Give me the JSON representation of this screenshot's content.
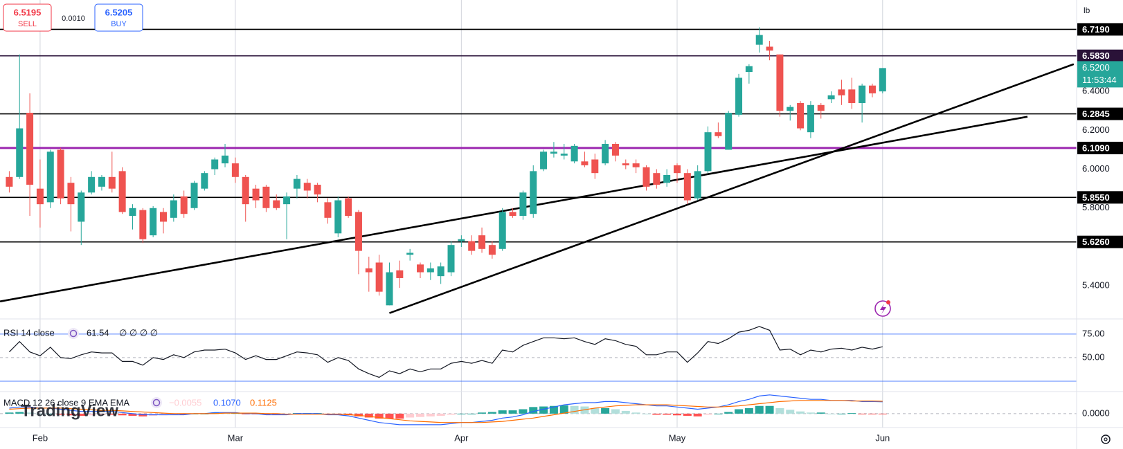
{
  "header": {
    "sell_price": "6.5195",
    "sell_label": "SELL",
    "spread": "0.0010",
    "buy_price": "6.5205",
    "buy_label": "BUY"
  },
  "chart_data": [
    {
      "type": "candlestick",
      "axis_unit": "lb",
      "categories": [
        null,
        null,
        null,
        "Feb",
        null,
        null,
        null,
        null,
        null,
        null,
        null,
        null,
        null,
        null,
        null,
        null,
        null,
        null,
        null,
        null,
        null,
        null,
        "Mar",
        null,
        null,
        null,
        null,
        null,
        null,
        null,
        null,
        null,
        null,
        null,
        null,
        null,
        null,
        null,
        null,
        null,
        null,
        null,
        null,
        null,
        "Apr",
        null,
        null,
        null,
        null,
        null,
        null,
        null,
        null,
        null,
        null,
        null,
        null,
        null,
        null,
        null,
        null,
        null,
        null,
        null,
        null,
        "May",
        null,
        null,
        null,
        null,
        null,
        null,
        null,
        null,
        null,
        null,
        null,
        null,
        null,
        null,
        null,
        null,
        null,
        null,
        null,
        "Jun"
      ],
      "open": [
        5.96,
        5.96,
        6.29,
        5.9,
        5.83,
        6.1,
        5.93,
        5.73,
        5.88,
        5.91,
        5.96,
        5.99,
        5.76,
        5.79,
        5.66,
        5.78,
        5.75,
        5.86,
        5.8,
        5.9,
        6.0,
        6.03,
        6.03,
        5.96,
        5.9,
        5.91,
        5.84,
        5.82,
        5.9,
        5.93,
        5.92,
        5.83,
        5.67,
        5.85,
        5.78,
        5.49,
        5.52,
        5.3,
        5.48,
        5.56,
        5.51,
        5.47,
        5.45,
        5.47,
        5.63,
        5.63,
        5.66,
        5.61,
        5.59,
        5.78,
        5.76,
        5.77,
        6.0,
        6.08,
        6.07,
        6.04,
        6.04,
        6.05,
        6.03,
        6.13,
        6.03,
        6.03,
        6.01,
        5.98,
        5.93,
        6.02,
        5.98,
        5.85,
        5.99,
        6.19,
        6.1,
        6.28,
        6.5,
        6.64,
        6.63,
        6.59,
        6.3,
        6.34,
        6.19,
        6.33,
        6.36,
        6.41,
        6.41,
        6.34,
        6.43,
        6.4
      ],
      "high": [
        5.99,
        6.59,
        6.39,
        6.05,
        6.1,
        6.11,
        5.96,
        5.89,
        5.99,
        5.97,
        6.09,
        6.01,
        5.82,
        5.8,
        5.81,
        5.8,
        5.87,
        5.89,
        5.94,
        5.99,
        6.06,
        6.13,
        6.06,
        5.97,
        5.92,
        5.92,
        5.87,
        5.88,
        5.97,
        5.95,
        5.93,
        5.85,
        5.86,
        5.86,
        5.79,
        5.55,
        5.56,
        5.52,
        5.53,
        5.59,
        5.52,
        5.52,
        5.52,
        5.63,
        5.66,
        5.66,
        5.7,
        5.63,
        5.8,
        5.8,
        5.89,
        6.02,
        6.1,
        6.14,
        6.13,
        6.13,
        6.09,
        6.08,
        6.15,
        6.14,
        6.05,
        6.05,
        6.02,
        6.0,
        6.0,
        6.03,
        6.0,
        6.02,
        6.22,
        6.24,
        6.3,
        6.49,
        6.54,
        6.73,
        6.66,
        6.59,
        6.33,
        6.35,
        6.35,
        6.34,
        6.4,
        6.46,
        6.47,
        6.44,
        6.44,
        6.52
      ],
      "low": [
        5.88,
        5.95,
        5.76,
        5.7,
        5.8,
        5.82,
        5.68,
        5.61,
        5.87,
        5.89,
        5.88,
        5.77,
        5.69,
        5.62,
        5.65,
        5.67,
        5.73,
        5.75,
        5.79,
        5.89,
        5.97,
        6.01,
        5.93,
        5.73,
        5.8,
        5.78,
        5.79,
        5.64,
        5.85,
        5.85,
        5.83,
        5.72,
        5.65,
        5.75,
        5.46,
        5.37,
        5.35,
        5.3,
        5.39,
        5.53,
        5.44,
        5.43,
        5.41,
        5.45,
        5.6,
        5.56,
        5.57,
        5.54,
        5.58,
        5.75,
        5.74,
        5.75,
        5.99,
        6.06,
        6.05,
        6.03,
        6.01,
        5.95,
        6.02,
        6.04,
        6.0,
        5.98,
        5.89,
        5.9,
        5.91,
        5.93,
        5.82,
        5.84,
        5.98,
        6.16,
        6.1,
        6.27,
        6.44,
        6.6,
        6.56,
        6.27,
        6.25,
        6.2,
        6.16,
        6.26,
        6.34,
        6.33,
        6.31,
        6.24,
        6.37,
        6.39
      ],
      "close": [
        5.91,
        6.21,
        5.92,
        5.82,
        6.09,
        5.85,
        5.82,
        5.88,
        5.96,
        5.96,
        5.9,
        5.78,
        5.8,
        5.64,
        5.8,
        5.73,
        5.84,
        5.77,
        5.93,
        5.98,
        6.05,
        6.07,
        5.96,
        5.82,
        5.84,
        5.8,
        5.8,
        5.86,
        5.95,
        5.89,
        5.87,
        5.75,
        5.84,
        5.76,
        5.58,
        5.47,
        5.37,
        5.47,
        5.44,
        5.57,
        5.47,
        5.49,
        5.5,
        5.61,
        5.64,
        5.58,
        5.59,
        5.56,
        5.78,
        5.76,
        5.88,
        5.99,
        6.09,
        6.09,
        6.08,
        6.12,
        6.02,
        5.98,
        6.13,
        6.07,
        6.02,
        6.01,
        5.91,
        5.92,
        5.97,
        5.98,
        5.84,
        5.99,
        6.19,
        6.17,
        6.29,
        6.47,
        6.53,
        6.69,
        6.61,
        6.3,
        6.32,
        6.21,
        6.33,
        6.3,
        6.38,
        6.38,
        6.34,
        6.43,
        6.39,
        6.52
      ],
      "up_color": "#26a69a",
      "down_color": "#ef5350",
      "ylim": [
        5.23,
        6.87
      ],
      "yticks": [
        {
          "value": 6.4,
          "label": "6.4000"
        },
        {
          "value": 6.2,
          "label": "6.2000"
        },
        {
          "value": 6.0,
          "label": "6.0000"
        },
        {
          "value": 5.8,
          "label": "5.8000"
        },
        {
          "value": 5.4,
          "label": "5.4000"
        }
      ],
      "levels": [
        {
          "value": 6.719,
          "label": "6.7190",
          "color": "#000000"
        },
        {
          "value": 6.583,
          "label": "6.5830",
          "color": "#2a1238"
        },
        {
          "value": 6.2845,
          "label": "6.2845",
          "color": "#000000"
        },
        {
          "value": 6.109,
          "label": "6.1090",
          "color": "#9c27b0"
        },
        {
          "value": 5.855,
          "label": "5.8550",
          "color": "#000000"
        },
        {
          "value": 5.626,
          "label": "5.6260",
          "color": "#000000"
        }
      ],
      "trendlines": [
        {
          "x": [
            -0.9,
            99.1
          ],
          "y": [
            5.32,
            6.27
          ]
        },
        {
          "x": [
            37,
            103.6
          ],
          "y": [
            5.26,
            6.54
          ]
        }
      ],
      "last_price": {
        "value": 6.52,
        "label": "6.5200",
        "countdown": "11:53:44",
        "color": "#26a69a"
      }
    },
    {
      "type": "line",
      "title": "RSI 14 close",
      "value_label": "61.54",
      "extra": "∅ ∅ ∅ ∅",
      "color": "#131722",
      "values": [
        56,
        67,
        56,
        52,
        61,
        50,
        49,
        53,
        56,
        55,
        55,
        46,
        46,
        42,
        50,
        48,
        53,
        50,
        56,
        58,
        58,
        59,
        55,
        48,
        52,
        48,
        48,
        52,
        56,
        55,
        53,
        45,
        50,
        47,
        38,
        33,
        29,
        36,
        33,
        38,
        35,
        38,
        38,
        44,
        46,
        44,
        47,
        44,
        58,
        56,
        63,
        67,
        71,
        71,
        70,
        71,
        67,
        64,
        70,
        68,
        64,
        62,
        53,
        53,
        56,
        56,
        45,
        55,
        67,
        65,
        70,
        77,
        79,
        83,
        79,
        58,
        59,
        53,
        58,
        56,
        59,
        60,
        58,
        61,
        59,
        61.54
      ],
      "ylim": [
        14,
        91
      ],
      "yticks": [
        {
          "value": 75,
          "label": "75.00"
        },
        {
          "value": 50,
          "label": "50.00"
        }
      ],
      "bands": [
        75,
        25
      ],
      "band_color": "#2962ff",
      "midline": 50
    },
    {
      "type": "macd",
      "title": "MACD 12 26 close 9 EMA EMA",
      "watermark": "TradingView",
      "histogram": [
        0.01,
        0.015,
        0.01,
        0,
        0,
        -0.01,
        -0.015,
        -0.02,
        -0.015,
        -0.01,
        -0.01,
        -0.015,
        -0.02,
        -0.025,
        -0.02,
        -0.015,
        -0.01,
        -0.01,
        0,
        0,
        0.01,
        0.005,
        0.005,
        -0.005,
        -0.005,
        -0.01,
        -0.01,
        -0.005,
        0.005,
        0.005,
        0.005,
        -0.005,
        -0.005,
        -0.01,
        -0.025,
        -0.035,
        -0.045,
        -0.045,
        -0.045,
        -0.035,
        -0.03,
        -0.025,
        -0.02,
        -0.01,
        0,
        0,
        0.01,
        0.015,
        0.03,
        0.03,
        0.04,
        0.06,
        0.065,
        0.07,
        0.075,
        0.07,
        0.065,
        0.05,
        0.05,
        0.04,
        0.025,
        0.01,
        0,
        -0.01,
        -0.01,
        -0.015,
        -0.02,
        -0.025,
        -0.01,
        0,
        0.015,
        0.04,
        0.05,
        0.07,
        0.07,
        0.05,
        0.035,
        0.02,
        0.01,
        0.01,
        0,
        0,
        0.005,
        -0.005,
        -0.005,
        -0.0055
      ],
      "macd": [
        0.05,
        0.06,
        0.06,
        0.05,
        0.05,
        0.04,
        0.03,
        0.02,
        0.02,
        0.02,
        0.02,
        0.01,
        0.0,
        -0.01,
        -0.01,
        -0.01,
        -0.01,
        -0.01,
        0.0,
        0.0,
        0.01,
        0.01,
        0.01,
        0.0,
        0.0,
        -0.01,
        -0.01,
        -0.01,
        0.0,
        0.0,
        0.0,
        -0.01,
        -0.01,
        -0.02,
        -0.04,
        -0.06,
        -0.08,
        -0.09,
        -0.1,
        -0.1,
        -0.1,
        -0.1,
        -0.1,
        -0.09,
        -0.08,
        -0.08,
        -0.07,
        -0.06,
        -0.04,
        -0.03,
        -0.01,
        0.02,
        0.04,
        0.06,
        0.08,
        0.09,
        0.1,
        0.1,
        0.11,
        0.11,
        0.1,
        0.09,
        0.08,
        0.07,
        0.07,
        0.06,
        0.05,
        0.04,
        0.05,
        0.06,
        0.08,
        0.11,
        0.13,
        0.16,
        0.17,
        0.16,
        0.15,
        0.14,
        0.13,
        0.13,
        0.12,
        0.12,
        0.12,
        0.11,
        0.11,
        0.107
      ],
      "signal": [
        0.04,
        0.045,
        0.05,
        0.05,
        0.05,
        0.05,
        0.045,
        0.04,
        0.035,
        0.03,
        0.03,
        0.025,
        0.02,
        0.015,
        0.01,
        0.005,
        0.0,
        0.0,
        0.0,
        0.0,
        0.0,
        0.005,
        0.005,
        0.005,
        0.005,
        0.0,
        0.0,
        -0.005,
        -0.005,
        -0.005,
        -0.005,
        -0.005,
        -0.005,
        -0.01,
        -0.015,
        -0.025,
        -0.035,
        -0.045,
        -0.055,
        -0.065,
        -0.07,
        -0.075,
        -0.08,
        -0.08,
        -0.08,
        -0.08,
        -0.08,
        -0.075,
        -0.07,
        -0.06,
        -0.05,
        -0.04,
        -0.025,
        -0.01,
        0.005,
        0.02,
        0.035,
        0.05,
        0.06,
        0.07,
        0.075,
        0.08,
        0.08,
        0.08,
        0.08,
        0.075,
        0.07,
        0.065,
        0.06,
        0.06,
        0.065,
        0.07,
        0.08,
        0.09,
        0.1,
        0.11,
        0.115,
        0.12,
        0.12,
        0.12,
        0.12,
        0.12,
        0.115,
        0.115,
        0.115,
        0.1125
      ],
      "value_labels": [
        "−0.0055",
        "0.1070",
        "0.1125"
      ],
      "colors": {
        "macd": "#2962ff",
        "signal": "#ff6d00",
        "hist_up_strong": "#26a69a",
        "hist_up_weak": "#b2dfdb",
        "hist_down_strong": "#ff5252",
        "hist_down_weak": "#ffcdd2"
      },
      "ylim": [
        -0.126,
        0.2
      ],
      "yticks": [
        {
          "value": 0,
          "label": "0.0000"
        }
      ]
    }
  ]
}
